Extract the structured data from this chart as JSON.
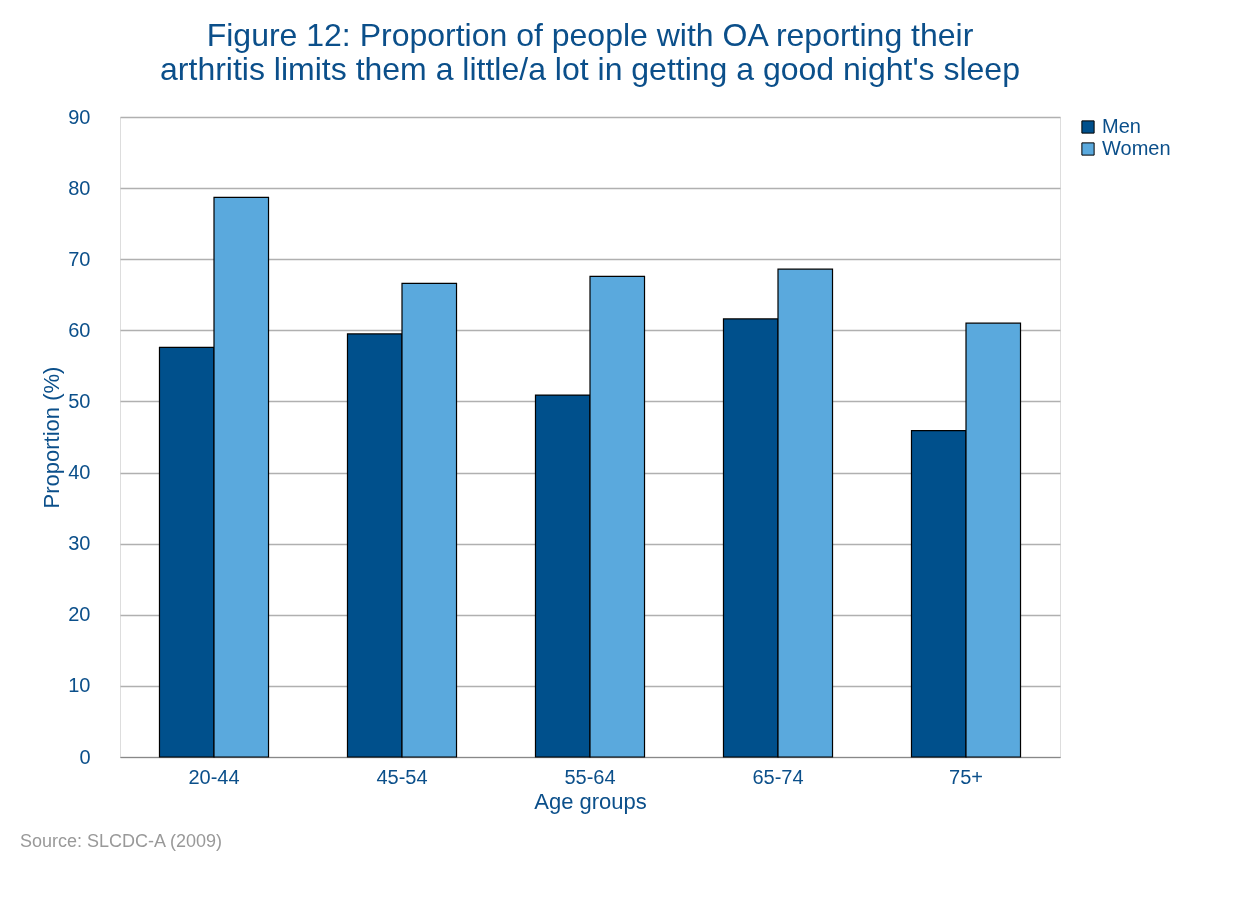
{
  "chart_data": {
    "type": "bar",
    "title": "Figure 12: Proportion of people with OA reporting their\narthritis limits them a little/a lot in getting a good night's sleep",
    "xlabel": "Age groups",
    "ylabel": "Proportion (%)",
    "categories": [
      "20-44",
      "45-54",
      "55-64",
      "65-74",
      "75+"
    ],
    "series": [
      {
        "name": "Men",
        "color": "#00508c",
        "values": [
          57.6,
          59.5,
          50.9,
          61.6,
          45.9
        ]
      },
      {
        "name": "Women",
        "color": "#5aa9dd",
        "values": [
          78.7,
          66.6,
          67.6,
          68.6,
          61.0
        ]
      }
    ],
    "ylim": [
      0,
      90
    ],
    "yticks": [
      0,
      10,
      20,
      30,
      40,
      50,
      60,
      70,
      80,
      90
    ],
    "grid": "y",
    "legend": "right",
    "annotations": [
      "Source: SLCDC-A (2009)"
    ]
  }
}
